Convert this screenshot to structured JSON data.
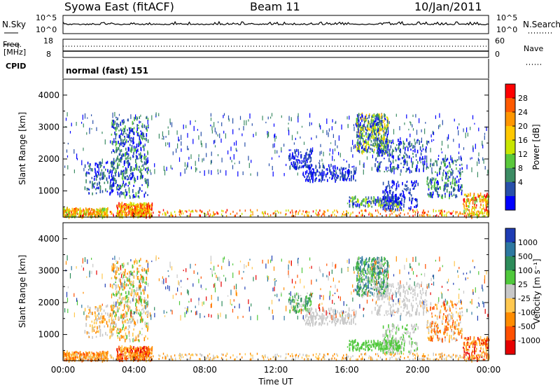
{
  "header": {
    "site": "Syowa East (fitACF)",
    "beam": "Beam 11",
    "date": "10/Jan/2011"
  },
  "strip_panels": {
    "nsky_label": "N.Sky",
    "nsky_ticks": [
      "10^5",
      "10^0"
    ],
    "nsearch_label": "N.Search",
    "nsearch_ticks": [
      "10^5",
      "10^0"
    ],
    "freq_label_1": "Freq.",
    "freq_label_2": "[MHz]",
    "freq_ticks": [
      "18",
      "8"
    ],
    "nave_label": "Nave",
    "nave_ticks": [
      "60",
      "0"
    ],
    "cpid_label": "CPID",
    "cpid_value": "normal (fast) 151"
  },
  "chart_data": [
    {
      "type": "heatmap",
      "name": "power",
      "ylabel": "Slant Range [km]",
      "ylim": [
        180,
        4500
      ],
      "y_ticks": [
        "4000",
        "3000",
        "2000",
        "1000"
      ],
      "x_ticks": [
        "00:00",
        "04:00",
        "08:00",
        "12:00",
        "16:00",
        "20:00",
        "00:00"
      ],
      "colorbar_label": "Power [dB]",
      "colorbar_ticks": [
        "28",
        "24",
        "20",
        "16",
        "12",
        "8",
        "4"
      ],
      "colorbar_colors": [
        "#ff0000",
        "#ff5a00",
        "#ff9600",
        "#ffc800",
        "#c8e600",
        "#5ac83c",
        "#3c8c64",
        "#2850aa",
        "#0000ff"
      ]
    },
    {
      "type": "heatmap",
      "name": "velocity",
      "ylabel": "Slant Range [km]",
      "ylim": [
        180,
        4500
      ],
      "y_ticks": [
        "4000",
        "3000",
        "2000",
        "1000"
      ],
      "x_ticks": [
        "00:00",
        "04:00",
        "08:00",
        "12:00",
        "16:00",
        "20:00",
        "00:00"
      ],
      "xlabel": "Time UT",
      "colorbar_label": "Velocity [m s⁻¹]",
      "colorbar_ticks": [
        "1000",
        "500",
        "100",
        "25",
        "-25",
        "-100",
        "-500",
        "-1000"
      ],
      "colorbar_colors": [
        "#1e3cb4",
        "#2d78a0",
        "#2d8c5a",
        "#50c83c",
        "#c8c8c8",
        "#ffc850",
        "#ff8c00",
        "#ff5000",
        "#e60000"
      ]
    }
  ]
}
